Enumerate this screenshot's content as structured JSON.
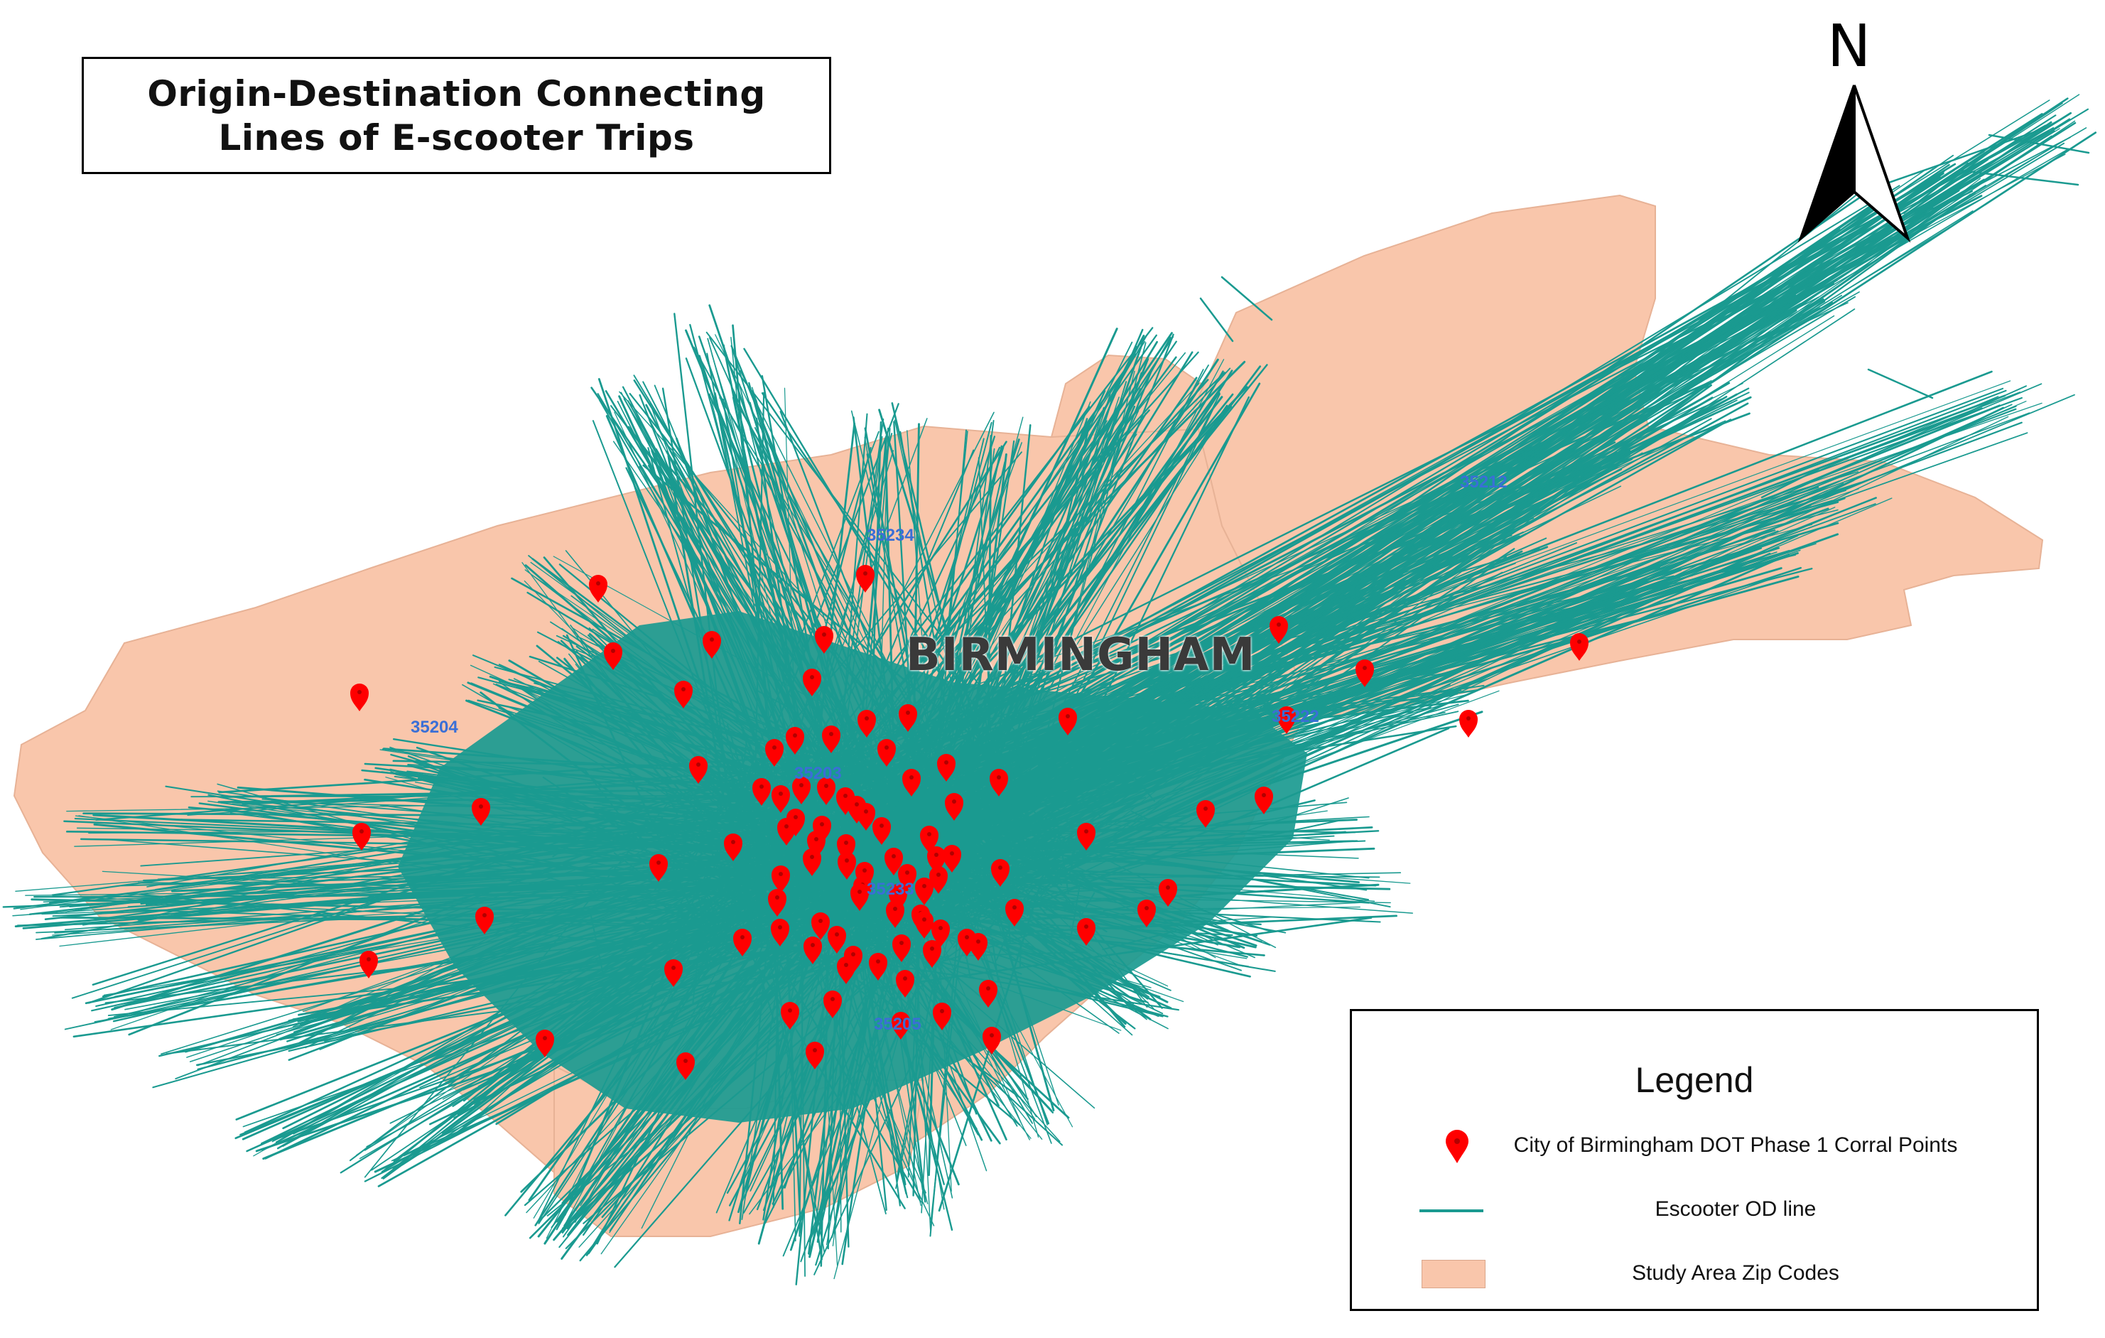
{
  "title": {
    "line1": "Origin-Destination Connecting",
    "line2": "Lines of E-scooter Trips"
  },
  "north_arrow": {
    "label": "N",
    "icon": "north-arrow-icon"
  },
  "city_label": "BIRMINGHAM",
  "zip_labels": [
    "35234",
    "35212",
    "35204",
    "35203",
    "35222",
    "35233",
    "35205"
  ],
  "legend": {
    "title": "Legend",
    "items": [
      {
        "label": "City of Birmingham DOT Phase 1 Corral Points",
        "icon": "map-marker-icon",
        "color": "#ff0000"
      },
      {
        "label": "Escooter OD line",
        "icon": "line-icon",
        "color": "#1a9a90"
      },
      {
        "label": "Study Area Zip Codes",
        "icon": "polygon-icon",
        "color": "#f9c6ab"
      }
    ]
  },
  "colors": {
    "study_area": "#f9c6ab",
    "od_lines": "#1a9a90",
    "corral_points": "#ff0000"
  }
}
